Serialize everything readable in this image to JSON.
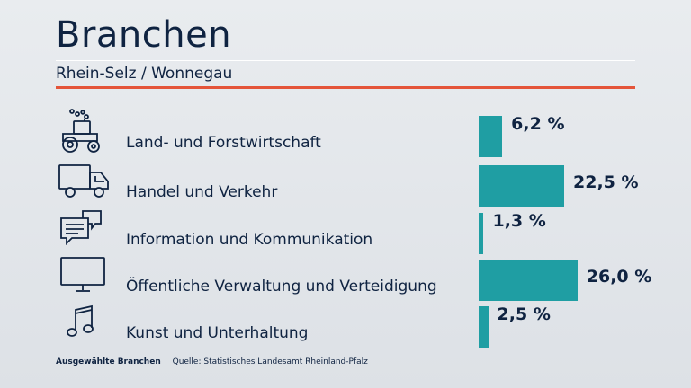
{
  "header": {
    "title": "Branchen",
    "subtitle": "Rhein-Selz / Wonnegau"
  },
  "colors": {
    "accent": "#e4553a",
    "bar": "#1f9ea3",
    "text": "#0f2341"
  },
  "chart_data": {
    "type": "bar",
    "orientation": "horizontal",
    "categories": [
      "Land- und Forstwirtschaft",
      "Handel und Verkehr",
      "Information und Kommunikation",
      "Öffentliche Verwaltung und Verteidigung",
      "Kunst und Unterhaltung"
    ],
    "values": [
      6.2,
      22.5,
      1.3,
      26.0,
      2.5
    ],
    "value_labels": [
      "6,2 %",
      "22,5 %",
      "1,3 %",
      "26,0 %",
      "2,5 %"
    ],
    "icons": [
      "tractor-icon",
      "truck-icon",
      "speech-bubbles-icon",
      "monitor-icon",
      "music-note-icon"
    ],
    "unit": "%"
  },
  "footer": {
    "note": "Ausgewählte Branchen",
    "source": "Quelle: Statistisches Landesamt Rheinland-Pfalz"
  }
}
